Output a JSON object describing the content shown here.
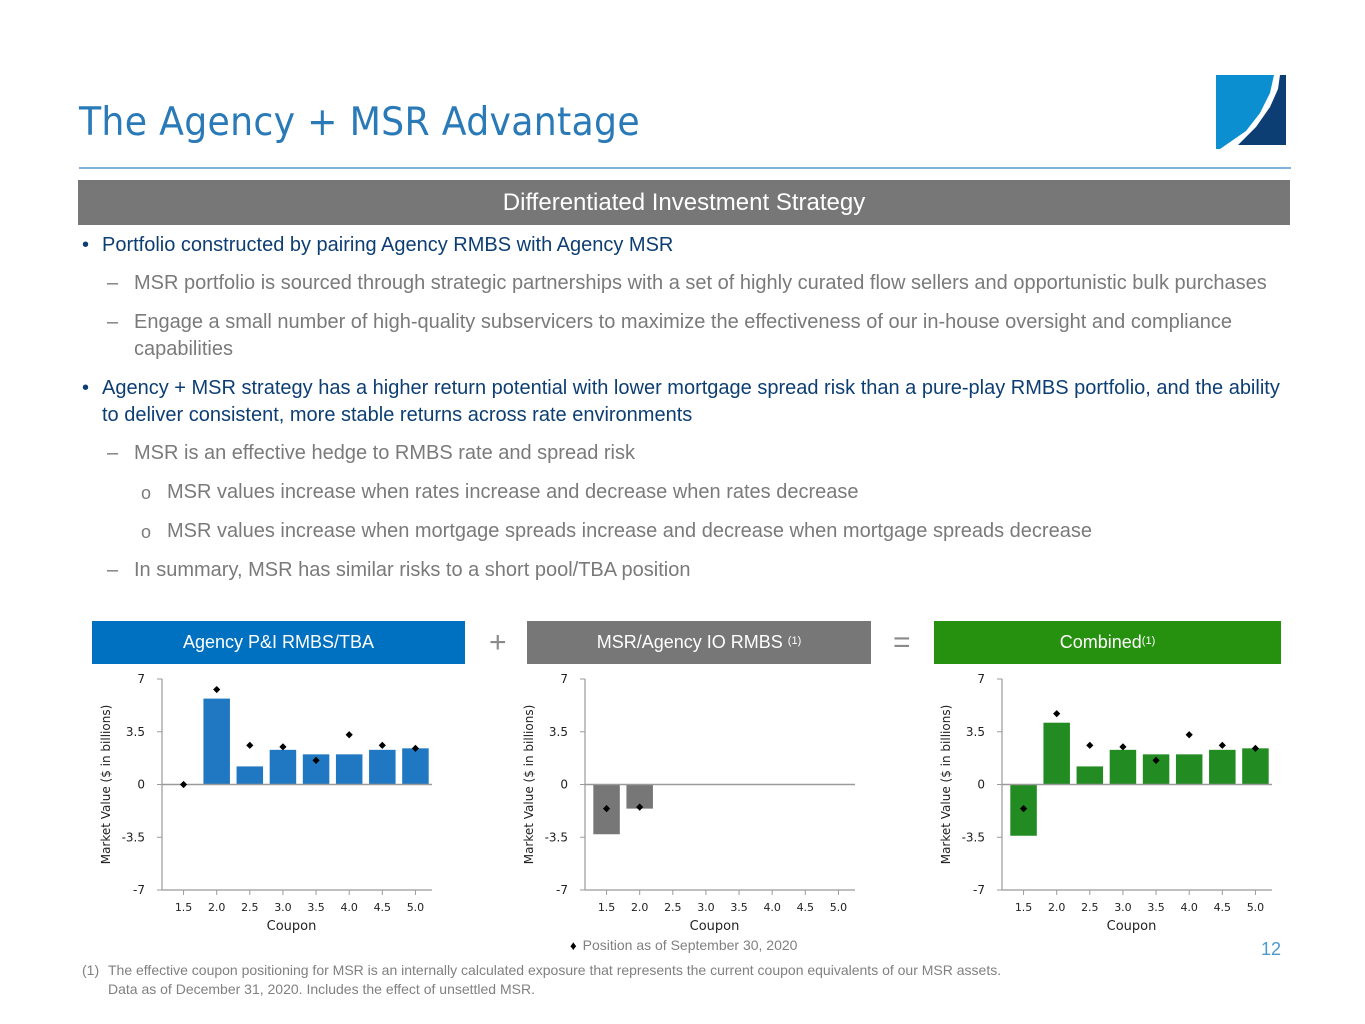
{
  "page": {
    "title": "The Agency + MSR Advantage",
    "banner": "Differentiated Investment Strategy",
    "page_number": "12"
  },
  "bullets": [
    {
      "level": 1,
      "marker": "•",
      "text": "Portfolio constructed by pairing Agency RMBS with Agency MSR"
    },
    {
      "level": 2,
      "marker": "–",
      "text": "MSR portfolio is sourced through strategic partnerships with a set of highly curated flow sellers and opportunistic bulk purchases"
    },
    {
      "level": 2,
      "marker": "–",
      "text": "Engage a small number of high-quality subservicers to maximize the effectiveness of our in-house oversight and compliance capabilities"
    },
    {
      "level": 1,
      "marker": "•",
      "text": "Agency + MSR strategy has a higher return potential with lower mortgage spread risk than a pure-play RMBS portfolio, and the ability to deliver consistent, more stable returns across rate environments"
    },
    {
      "level": 2,
      "marker": "–",
      "text": "MSR is an effective hedge to RMBS rate and spread risk"
    },
    {
      "level": 3,
      "marker": "o",
      "text": "MSR values increase when rates increase and decrease when rates decrease"
    },
    {
      "level": 3,
      "marker": "o",
      "text": "MSR values increase when mortgage spreads increase and decrease when mortgage spreads decrease"
    },
    {
      "level": 2,
      "marker": "–",
      "text": "In summary, MSR has similar risks to a short pool/TBA position"
    }
  ],
  "operators": {
    "plus": "+",
    "equals": "="
  },
  "colors": {
    "title": "#2a7ab8",
    "banner": "#777777",
    "agency": "#1f78c1",
    "agency_header": "#0070c0",
    "msr": "#777777",
    "combined": "#228b22",
    "combined_header": "#26900f",
    "bullet_primary": "#0d3e73",
    "bullet_secondary": "#7a7a7a"
  },
  "legend": {
    "marker": "♦",
    "text": "Position as of September 30, 2020"
  },
  "footnote": {
    "number": "(1)",
    "line1": "The effective coupon positioning for MSR is an internally calculated exposure that represents the current coupon equivalents of our MSR assets.",
    "line2": "Data as of December 31, 2020.  Includes the effect of unsettled MSR."
  },
  "chart_data": [
    {
      "type": "bar",
      "title": "Agency P&I RMBS/TBA",
      "title_sup": "",
      "xlabel": "Coupon",
      "ylabel": "Market Value ($ in billions)",
      "categories": [
        "1.5",
        "2.0",
        "2.5",
        "3.0",
        "3.5",
        "4.0",
        "4.5",
        "5.0"
      ],
      "yticks": [
        "7",
        "3.5",
        "0",
        "-3.5",
        "-7"
      ],
      "ylim": [
        -7,
        7
      ],
      "grid": false,
      "series": [
        {
          "name": "Position as of December 31, 2020",
          "kind": "bar",
          "color": "#1f78c1",
          "values": [
            0,
            5.7,
            1.2,
            2.3,
            2.0,
            2.0,
            2.3,
            2.4
          ]
        },
        {
          "name": "Position as of September 30, 2020",
          "kind": "diamond",
          "color": "#000000",
          "values": [
            0,
            6.3,
            2.6,
            2.5,
            1.6,
            3.3,
            2.6,
            2.4
          ]
        }
      ]
    },
    {
      "type": "bar",
      "title": "MSR/Agency IO RMBS",
      "title_sup": "(1)",
      "xlabel": "Coupon",
      "ylabel": "Market Value ($ in billions)",
      "categories": [
        "1.5",
        "2.0",
        "2.5",
        "3.0",
        "3.5",
        "4.0",
        "4.5",
        "5.0"
      ],
      "yticks": [
        "7",
        "3.5",
        "0",
        "-3.5",
        "-7"
      ],
      "ylim": [
        -7,
        7
      ],
      "grid": false,
      "series": [
        {
          "name": "Position as of December 31, 2020",
          "kind": "bar",
          "color": "#777777",
          "values": [
            -3.3,
            -1.6,
            null,
            null,
            null,
            null,
            null,
            null
          ]
        },
        {
          "name": "Position as of September 30, 2020",
          "kind": "diamond",
          "color": "#000000",
          "values": [
            -1.6,
            -1.5,
            null,
            null,
            null,
            null,
            null,
            null
          ]
        }
      ]
    },
    {
      "type": "bar",
      "title": "Combined",
      "title_sup": "(1)",
      "xlabel": "Coupon",
      "ylabel": "Market Value ($ in billions)",
      "categories": [
        "1.5",
        "2.0",
        "2.5",
        "3.0",
        "3.5",
        "4.0",
        "4.5",
        "5.0"
      ],
      "yticks": [
        "7",
        "3.5",
        "0",
        "-3.5",
        "-7"
      ],
      "ylim": [
        -7,
        7
      ],
      "grid": false,
      "series": [
        {
          "name": "Position as of December 31, 2020",
          "kind": "bar",
          "color": "#228b22",
          "values": [
            -3.4,
            4.1,
            1.2,
            2.3,
            2.0,
            2.0,
            2.3,
            2.4
          ]
        },
        {
          "name": "Position as of September 30, 2020",
          "kind": "diamond",
          "color": "#000000",
          "values": [
            -1.6,
            4.7,
            2.6,
            2.5,
            1.6,
            3.3,
            2.6,
            2.4
          ]
        }
      ]
    }
  ]
}
